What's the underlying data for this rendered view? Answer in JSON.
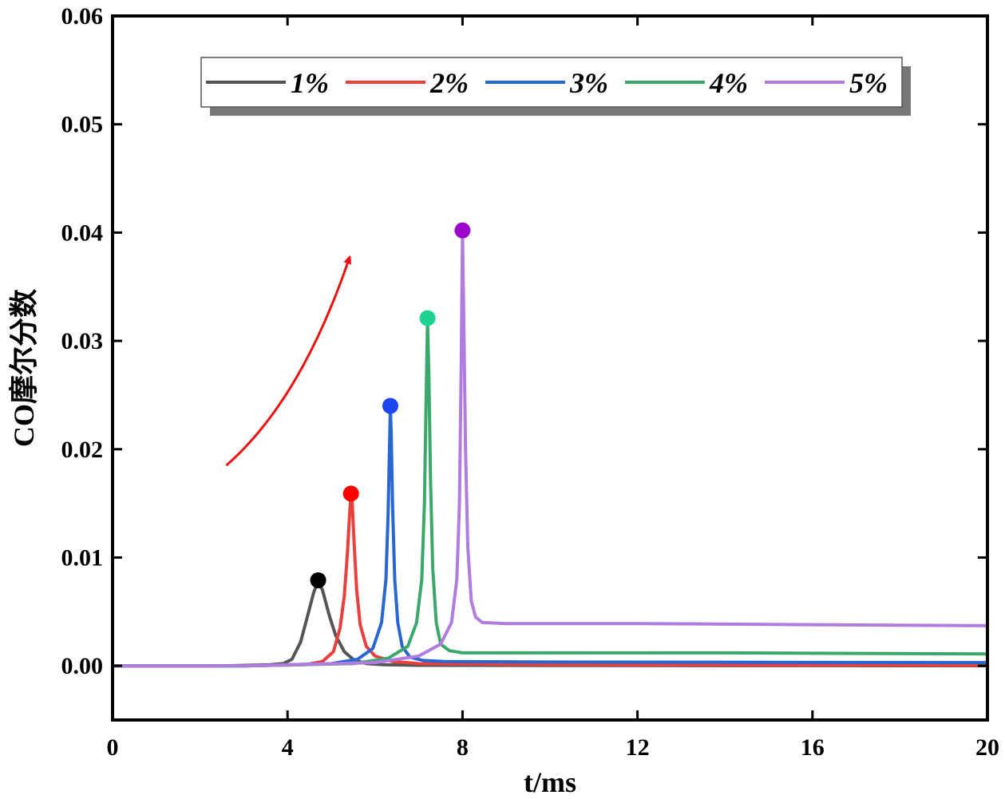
{
  "chart_data": {
    "type": "line",
    "title": "",
    "xlabel": "t/ms",
    "ylabel": "CO摩尔分数",
    "xlim": [
      0,
      20
    ],
    "ylim": [
      -0.005,
      0.06
    ],
    "xticks": [
      0,
      4,
      8,
      12,
      16,
      20
    ],
    "xtick_labels": [
      "0",
      "4",
      "8",
      "12",
      "16",
      "20"
    ],
    "yticks": [
      0.0,
      0.01,
      0.02,
      0.03,
      0.04,
      0.05,
      0.06
    ],
    "ytick_labels": [
      "0.00",
      "0.01",
      "0.02",
      "0.03",
      "0.04",
      "0.05",
      "0.06"
    ],
    "grid": false,
    "legend_position": "top",
    "series": [
      {
        "name": "1%",
        "color": "#555555",
        "peak_color": "#000000",
        "peak": {
          "x": 4.7,
          "y": 0.0079
        },
        "x": [
          0,
          2.5,
          3.6,
          3.9,
          4.1,
          4.3,
          4.45,
          4.6,
          4.7,
          4.8,
          4.95,
          5.1,
          5.3,
          5.5,
          5.8,
          6.2,
          7,
          10,
          14,
          20
        ],
        "y": [
          0,
          0,
          0.0001,
          0.0002,
          0.0006,
          0.0022,
          0.0045,
          0.0068,
          0.0078,
          0.007,
          0.0047,
          0.0028,
          0.0013,
          0.0006,
          0.0002,
          0.0001,
          5e-05,
          3e-05,
          2e-05,
          1e-05
        ]
      },
      {
        "name": "2%",
        "color": "#e8413d",
        "peak_color": "#ff0000",
        "peak": {
          "x": 5.45,
          "y": 0.0159
        },
        "x": [
          0,
          3,
          4.4,
          4.8,
          5.05,
          5.2,
          5.3,
          5.37,
          5.42,
          5.45,
          5.48,
          5.52,
          5.58,
          5.66,
          5.8,
          6.0,
          6.4,
          7,
          10,
          20
        ],
        "y": [
          0,
          0,
          0.0001,
          0.0004,
          0.0013,
          0.0035,
          0.0065,
          0.0105,
          0.014,
          0.0158,
          0.015,
          0.0115,
          0.007,
          0.0038,
          0.0018,
          0.0009,
          0.0004,
          0.0002,
          0.0001,
          5e-05
        ]
      },
      {
        "name": "3%",
        "color": "#2867d1",
        "peak_color": "#1d45f0",
        "peak": {
          "x": 6.35,
          "y": 0.024
        },
        "x": [
          0,
          3,
          5.0,
          5.6,
          5.95,
          6.15,
          6.25,
          6.3,
          6.33,
          6.35,
          6.37,
          6.4,
          6.45,
          6.52,
          6.62,
          6.8,
          7.1,
          7.6,
          10,
          20
        ],
        "y": [
          0,
          0,
          0.0002,
          0.0006,
          0.0016,
          0.004,
          0.008,
          0.014,
          0.02,
          0.0238,
          0.0215,
          0.015,
          0.008,
          0.004,
          0.0018,
          0.0008,
          0.0005,
          0.0004,
          0.00035,
          0.0003
        ]
      },
      {
        "name": "4%",
        "color": "#3aa86b",
        "peak_color": "#1ed38f",
        "peak": {
          "x": 7.2,
          "y": 0.0321
        },
        "x": [
          0,
          3,
          5.5,
          6.3,
          6.75,
          6.95,
          7.07,
          7.13,
          7.17,
          7.2,
          7.23,
          7.27,
          7.32,
          7.4,
          7.5,
          7.7,
          8,
          10,
          14,
          20
        ],
        "y": [
          0,
          0,
          0.0002,
          0.0007,
          0.0018,
          0.004,
          0.008,
          0.015,
          0.025,
          0.0318,
          0.027,
          0.017,
          0.009,
          0.004,
          0.002,
          0.0014,
          0.0012,
          0.0012,
          0.0012,
          0.0011
        ]
      },
      {
        "name": "5%",
        "color": "#b07ce0",
        "peak_color": "#9b05c9",
        "peak": {
          "x": 8.0,
          "y": 0.0402
        },
        "x": [
          0,
          3,
          6.0,
          7.0,
          7.5,
          7.75,
          7.87,
          7.93,
          7.97,
          8.0,
          8.03,
          8.07,
          8.12,
          8.2,
          8.3,
          8.45,
          9,
          12,
          16,
          20
        ],
        "y": [
          0,
          0,
          0.0003,
          0.0009,
          0.002,
          0.004,
          0.008,
          0.015,
          0.028,
          0.04,
          0.032,
          0.02,
          0.011,
          0.006,
          0.0045,
          0.004,
          0.0039,
          0.0039,
          0.0038,
          0.0037
        ]
      }
    ],
    "annotations": [
      {
        "type": "arrow",
        "color": "#ee1111",
        "description": "curved arrow indicating increasing peak CO fraction with concentration",
        "path": [
          [
            2.6,
            0.0185
          ],
          [
            4.3,
            0.0245
          ],
          [
            5.4,
            0.0375
          ]
        ]
      }
    ]
  }
}
